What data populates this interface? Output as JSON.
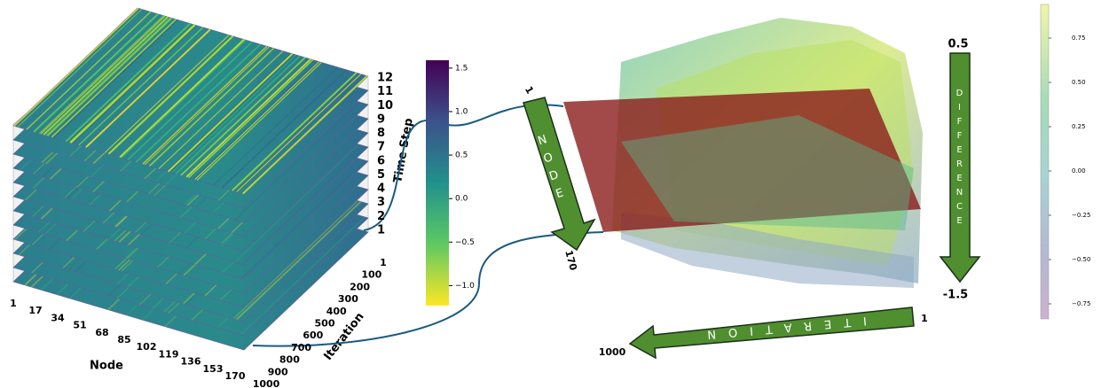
{
  "left_panel": {
    "x_label": "Node",
    "x_ticks": [
      "1",
      "17",
      "34",
      "51",
      "68",
      "85",
      "102",
      "119",
      "136",
      "153",
      "170"
    ],
    "y_label": "Iteration",
    "y_ticks": [
      "1",
      "100",
      "200",
      "300",
      "400",
      "500",
      "600",
      "700",
      "800",
      "900",
      "1000"
    ],
    "z_label": "Time Step",
    "z_ticks": [
      "1",
      "2",
      "3",
      "4",
      "5",
      "6",
      "7",
      "8",
      "9",
      "10",
      "11",
      "12"
    ]
  },
  "left_colorbar": {
    "lim": [
      -1.23,
      1.59
    ],
    "ticks": [
      {
        "value": 1.5,
        "label": "1.5"
      },
      {
        "value": 1.0,
        "label": "1.0"
      },
      {
        "value": 0.5,
        "label": "0.5"
      },
      {
        "value": 0.0,
        "label": "0.0"
      },
      {
        "value": -0.5,
        "label": "−0.5"
      },
      {
        "value": -1.0,
        "label": "−1.0"
      }
    ]
  },
  "right_colorbar": {
    "lim": [
      -0.835,
      0.94
    ],
    "ticks": [
      0.75,
      0.5,
      0.25,
      0.0,
      -0.25,
      -0.5,
      -0.75
    ],
    "tick_labels": [
      "0.75",
      "0.50",
      "0.25",
      "0.00",
      "−0.25",
      "−0.50",
      "−0.75"
    ]
  },
  "right_panel": {
    "node_arrow": {
      "label": "NODE",
      "start": "1",
      "end": "170"
    },
    "difference_arrow": {
      "label": "DIFFERENCE",
      "start": "0.5",
      "end": "-1.5"
    },
    "iteration_arrow": {
      "label": "ITERATION",
      "start": "1",
      "end": "1000"
    }
  }
}
